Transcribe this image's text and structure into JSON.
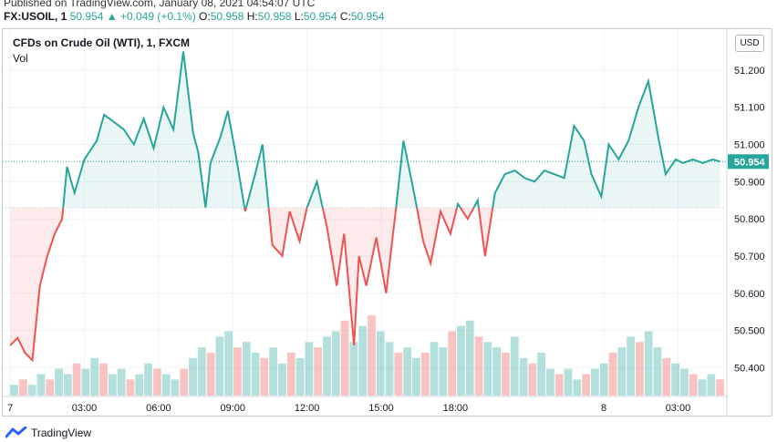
{
  "header": {
    "published": "Published on TradingView.com, January 08, 2021 04:54:07 UTC",
    "symbol": "FX:USOIL, 1",
    "last": "50.954",
    "change_arrow": "▲",
    "change": "+0.049 (+0.1%)",
    "o_label": "O:",
    "o_value": "50.958",
    "h_label": "H:",
    "h_value": "50.958",
    "l_label": "L:",
    "l_value": "50.954",
    "c_label": "C:",
    "c_value": "50.954"
  },
  "legend": {
    "title": "CFDs on Crude Oil (WTI), 1, FXCM",
    "vol": "Vol"
  },
  "price_scale": {
    "currency": "USD"
  },
  "footer": {
    "brand": "TradingView",
    "logo_icon": "tradingview-logo-icon"
  },
  "colors": {
    "up": "#26a69a",
    "down": "#ef5350",
    "grid": "#f0f3fa",
    "text": "#131722"
  },
  "chart_data": {
    "type": "area",
    "baseline": 50.83,
    "ylim": [
      50.33,
      51.31
    ],
    "y_ticks": [
      "51.200",
      "51.100",
      "51.000",
      "50.900",
      "50.800",
      "50.700",
      "50.600",
      "50.500",
      "50.400"
    ],
    "y_tick_values": [
      51.2,
      51.1,
      51.0,
      50.9,
      50.8,
      50.7,
      50.6,
      50.5,
      50.4
    ],
    "last_price_label": "50.954",
    "last_price": 50.954,
    "x_ticks": [
      "7",
      "03:00",
      "06:00",
      "09:00",
      "12:00",
      "15:00",
      "18:00",
      "8",
      "03:00"
    ],
    "x_tick_hours": [
      0,
      3,
      6,
      9,
      12,
      15,
      18,
      24,
      27
    ],
    "x_range_hours": [
      -0.3,
      28.9
    ],
    "x": [
      0,
      0.3,
      0.6,
      0.9,
      1.2,
      1.5,
      1.8,
      2.1,
      2.3,
      2.6,
      3.0,
      3.5,
      3.8,
      4.2,
      4.6,
      5.0,
      5.4,
      5.8,
      6.2,
      6.6,
      7.0,
      7.4,
      7.6,
      7.9,
      8.1,
      8.5,
      8.8,
      9.1,
      9.5,
      9.9,
      10.2,
      10.6,
      11.0,
      11.3,
      11.7,
      12.0,
      12.4,
      12.8,
      13.2,
      13.5,
      13.9,
      14.1,
      14.4,
      14.8,
      15.2,
      15.6,
      15.9,
      16.3,
      16.7,
      17.0,
      17.4,
      17.8,
      18.1,
      18.5,
      18.9,
      19.2,
      19.6,
      20.0,
      20.4,
      20.8,
      21.2,
      21.6,
      22.0,
      22.4,
      22.8,
      23.2,
      23.5,
      23.9,
      24.2,
      24.6,
      25.0,
      25.4,
      25.8,
      26.2,
      26.5,
      26.9,
      27.2,
      27.6,
      28.0,
      28.4,
      28.7
    ],
    "values": [
      50.46,
      50.48,
      50.44,
      50.42,
      50.62,
      50.7,
      50.76,
      50.8,
      50.94,
      50.87,
      50.96,
      51.01,
      51.08,
      51.06,
      51.04,
      51.0,
      51.07,
      50.99,
      51.1,
      51.04,
      51.25,
      51.03,
      50.98,
      50.83,
      50.95,
      51.02,
      51.09,
      50.98,
      50.82,
      50.92,
      51.0,
      50.73,
      50.7,
      50.82,
      50.74,
      50.83,
      50.9,
      50.78,
      50.62,
      50.76,
      50.46,
      50.7,
      50.62,
      50.75,
      50.6,
      50.83,
      51.01,
      50.88,
      50.74,
      50.68,
      50.82,
      50.76,
      50.84,
      50.8,
      50.85,
      50.7,
      50.87,
      50.92,
      50.93,
      50.91,
      50.9,
      50.93,
      50.92,
      50.91,
      51.05,
      51.01,
      50.92,
      50.86,
      51.0,
      50.96,
      51.01,
      51.1,
      51.17,
      51.02,
      50.92,
      50.96,
      50.95,
      50.96,
      50.95,
      50.96,
      50.954
    ],
    "volume": {
      "type": "bar",
      "x_range_hours": [
        0,
        28.9
      ],
      "values": [
        2,
        3,
        2,
        4,
        3,
        5,
        4,
        6,
        5,
        7,
        6,
        4,
        5,
        3,
        4,
        6,
        5,
        4,
        3,
        5,
        7,
        9,
        8,
        11,
        12,
        9,
        10,
        8,
        7,
        9,
        6,
        8,
        7,
        10,
        9,
        11,
        12,
        14,
        10,
        13,
        15,
        12,
        10,
        8,
        9,
        7,
        8,
        10,
        9,
        12,
        13,
        14,
        11,
        10,
        9,
        8,
        11,
        7,
        6,
        8,
        5,
        4,
        5,
        3,
        4,
        5,
        6,
        8,
        9,
        11,
        10,
        12,
        9,
        7,
        6,
        5,
        4,
        3,
        4,
        3
      ],
      "ylim": [
        0,
        16
      ]
    }
  }
}
